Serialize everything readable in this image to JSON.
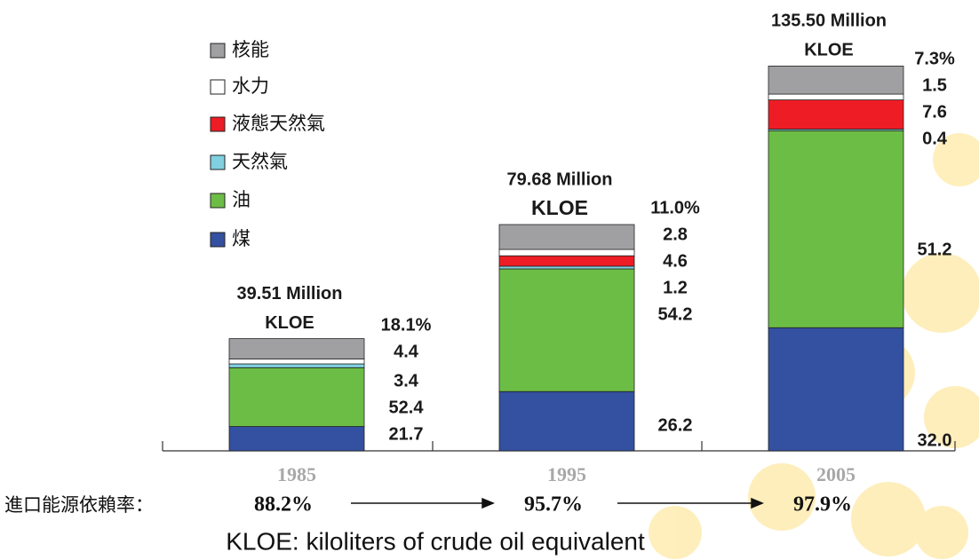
{
  "chart_data": {
    "type": "stacked_bar_percent",
    "categories": [
      "1985",
      "1995",
      "2005"
    ],
    "totals": [
      39.51,
      79.68,
      135.5
    ],
    "total_labels": [
      "39.51 Million",
      "79.68 Million",
      "135.50 Million"
    ],
    "unit_label": "KLOE",
    "series": [
      {
        "name": "煤",
        "color": "#3450a0",
        "values": [
          21.7,
          26.2,
          32.0
        ],
        "value_labels": [
          "21.7",
          "26.2",
          "32.0"
        ]
      },
      {
        "name": "油",
        "color": "#6cbd45",
        "values": [
          52.4,
          54.2,
          51.2
        ]
      },
      {
        "name": "天然氣",
        "color": "#80d0e0",
        "values": [
          3.4,
          1.2,
          0.4
        ]
      },
      {
        "name": "液態天然氣",
        "color": "#ee1c24",
        "values": [
          null,
          4.6,
          7.6
        ]
      },
      {
        "name": "水力",
        "color": "#ffffff",
        "values": [
          4.4,
          2.8,
          1.5
        ]
      },
      {
        "name": "核能",
        "color": "#a0a0a2",
        "values": [
          18.1,
          11.0,
          7.3
        ],
        "value_labels": [
          "18.1%",
          "11.0%",
          "7.3%"
        ]
      }
    ],
    "dependency": {
      "label": "進口能源依賴率：",
      "values": [
        88.2,
        95.7,
        97.9
      ],
      "value_labels": [
        "88.2%",
        "95.7%",
        "97.9%"
      ]
    },
    "footnote": "KLOE: kiloliters of crude oil equivalent"
  }
}
